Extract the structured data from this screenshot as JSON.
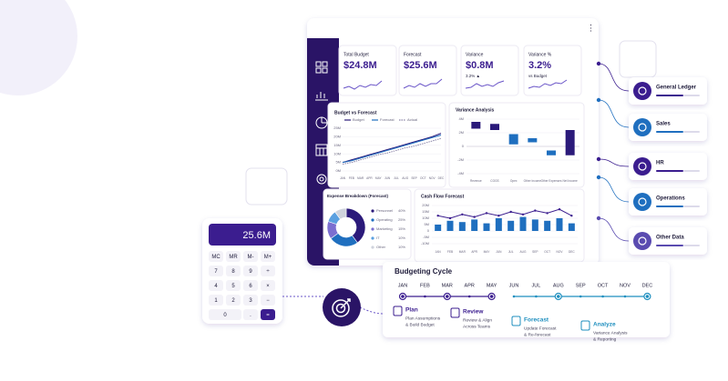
{
  "dashboard": {
    "kpis": [
      {
        "label": "Total Budget",
        "value": "$24.8M"
      },
      {
        "label": "Forecast",
        "value": "$25.6M"
      },
      {
        "label": "Variance",
        "value": "$0.8M",
        "note": "3.2% ▲"
      },
      {
        "label": "Variance %",
        "value": "3.2%",
        "note": "vs Budget"
      }
    ],
    "budget_vs_forecast": {
      "title": "Budget vs Forecast",
      "categories": [
        "JAN",
        "FEB",
        "MAR",
        "APR",
        "MAY",
        "JUN",
        "JUL",
        "AUG",
        "SEP",
        "OCT",
        "NOV",
        "DEC"
      ],
      "series": [
        {
          "name": "Budget",
          "color": "#2b1a7a",
          "dashed": false,
          "values": [
            5,
            6.5,
            8,
            9.5,
            11,
            12.5,
            14,
            15.5,
            17,
            18.5,
            20,
            22
          ]
        },
        {
          "name": "Forecast",
          "color": "#1f6fbf",
          "dashed": false,
          "values": [
            5,
            6,
            7.5,
            9,
            10.5,
            12,
            13.5,
            15,
            16.5,
            18,
            19.5,
            21
          ]
        },
        {
          "name": "Actual",
          "color": "#8a84a8",
          "dashed": true,
          "values": [
            4,
            5,
            6.5,
            8,
            9.5,
            10.5,
            12,
            13.5,
            14.5,
            16,
            17.5,
            19
          ]
        }
      ],
      "ylim": [
        0,
        25
      ],
      "yticks": [
        {
          "value": 0,
          "label": "0M"
        },
        {
          "value": 5,
          "label": "5M"
        },
        {
          "value": 10,
          "label": "10M"
        },
        {
          "value": 15,
          "label": "15M"
        },
        {
          "value": 20,
          "label": "20M"
        },
        {
          "value": 25,
          "label": "25M"
        }
      ]
    },
    "variance_analysis": {
      "title": "Variance Analysis",
      "categories": [
        "Revenue",
        "COGS",
        "Opex",
        "Other Income",
        "Other Expenses",
        "Net Income"
      ],
      "bars": [
        {
          "low": 2.6,
          "high": 3.6,
          "color": "#2b1a7a"
        },
        {
          "low": 2.4,
          "high": 3.3,
          "color": "#2b1a7a"
        },
        {
          "low": 0.3,
          "high": 1.8,
          "color": "#1f6fbf"
        },
        {
          "low": 0.6,
          "high": 1.2,
          "color": "#1f6fbf"
        },
        {
          "low": -1.3,
          "high": -0.6,
          "color": "#1f6fbf"
        },
        {
          "low": -1.3,
          "high": 2.4,
          "color": "#2b1a7a"
        }
      ],
      "ylim": [
        -4,
        4
      ],
      "yticks": [
        {
          "value": -4,
          "label": "-4M"
        },
        {
          "value": -2,
          "label": "-2M"
        },
        0,
        {
          "value": 2,
          "label": "2M"
        },
        {
          "value": 4,
          "label": "4M"
        }
      ]
    },
    "expense_breakdown": {
      "title": "Expense Breakdown (Forecast)",
      "categories": [
        "Personnel",
        "Operating",
        "Marketing",
        "IT",
        "Other"
      ],
      "values": [
        40,
        25,
        15,
        10,
        10
      ],
      "value_labels": [
        "40%",
        "25%",
        "15%",
        "10%",
        "10%"
      ],
      "colors": [
        "#2b1a7a",
        "#1f6fbf",
        "#7b6fd0",
        "#5aa0e0",
        "#cfd3dc"
      ]
    },
    "cash_flow_forecast": {
      "title": "Cash Flow Forecast",
      "categories": [
        "JAN",
        "FEB",
        "MAR",
        "APR",
        "MAY",
        "JUN",
        "JUL",
        "AUG",
        "SEP",
        "OCT",
        "NOV",
        "DEC"
      ],
      "bars": [
        5,
        8,
        7,
        9,
        6,
        10,
        8,
        11,
        9,
        8,
        10,
        6
      ],
      "line": [
        12,
        10,
        13,
        11,
        14,
        12,
        15,
        13,
        16,
        14,
        17,
        12
      ],
      "bar_color": "#1f6fbf",
      "line_color": "#3b1d8f",
      "ylim": [
        -10,
        20
      ],
      "yticks": [
        {
          "value": -10,
          "label": "-10M"
        },
        {
          "value": -5,
          "label": "-5M"
        },
        0,
        {
          "value": 5,
          "label": "5M"
        },
        {
          "value": 10,
          "label": "10M"
        },
        {
          "value": 15,
          "label": "15M"
        },
        {
          "value": 20,
          "label": "20M"
        }
      ]
    }
  },
  "sources": [
    "General Ledger",
    "Sales",
    "HR",
    "Operations",
    "Other Data"
  ],
  "calculator": {
    "display": "25.6M",
    "keys": [
      [
        "MC",
        "MR",
        "M-",
        "M+"
      ],
      [
        "7",
        "8",
        "9",
        "÷"
      ],
      [
        "4",
        "5",
        "6",
        "×"
      ],
      [
        "1",
        "2",
        "3",
        "−"
      ],
      [
        "0",
        ".",
        "="
      ]
    ]
  },
  "budgeting_cycle": {
    "title": "Budgeting Cycle",
    "months": [
      "JAN",
      "FEB",
      "MAR",
      "APR",
      "MAY",
      "JUN",
      "JUL",
      "AUG",
      "SEP",
      "OCT",
      "NOV",
      "DEC"
    ],
    "steps": [
      {
        "title": "Plan",
        "lines": [
          "Plan Assumptions",
          "& Build Budget"
        ]
      },
      {
        "title": "Review",
        "lines": [
          "Review & Align",
          "Across Teams"
        ]
      },
      {
        "title": "Forecast",
        "lines": [
          "Update Forecast",
          "& Re-forecast"
        ]
      },
      {
        "title": "Analyze",
        "lines": [
          "Variance Analysis",
          "& Reporting"
        ]
      }
    ]
  }
}
